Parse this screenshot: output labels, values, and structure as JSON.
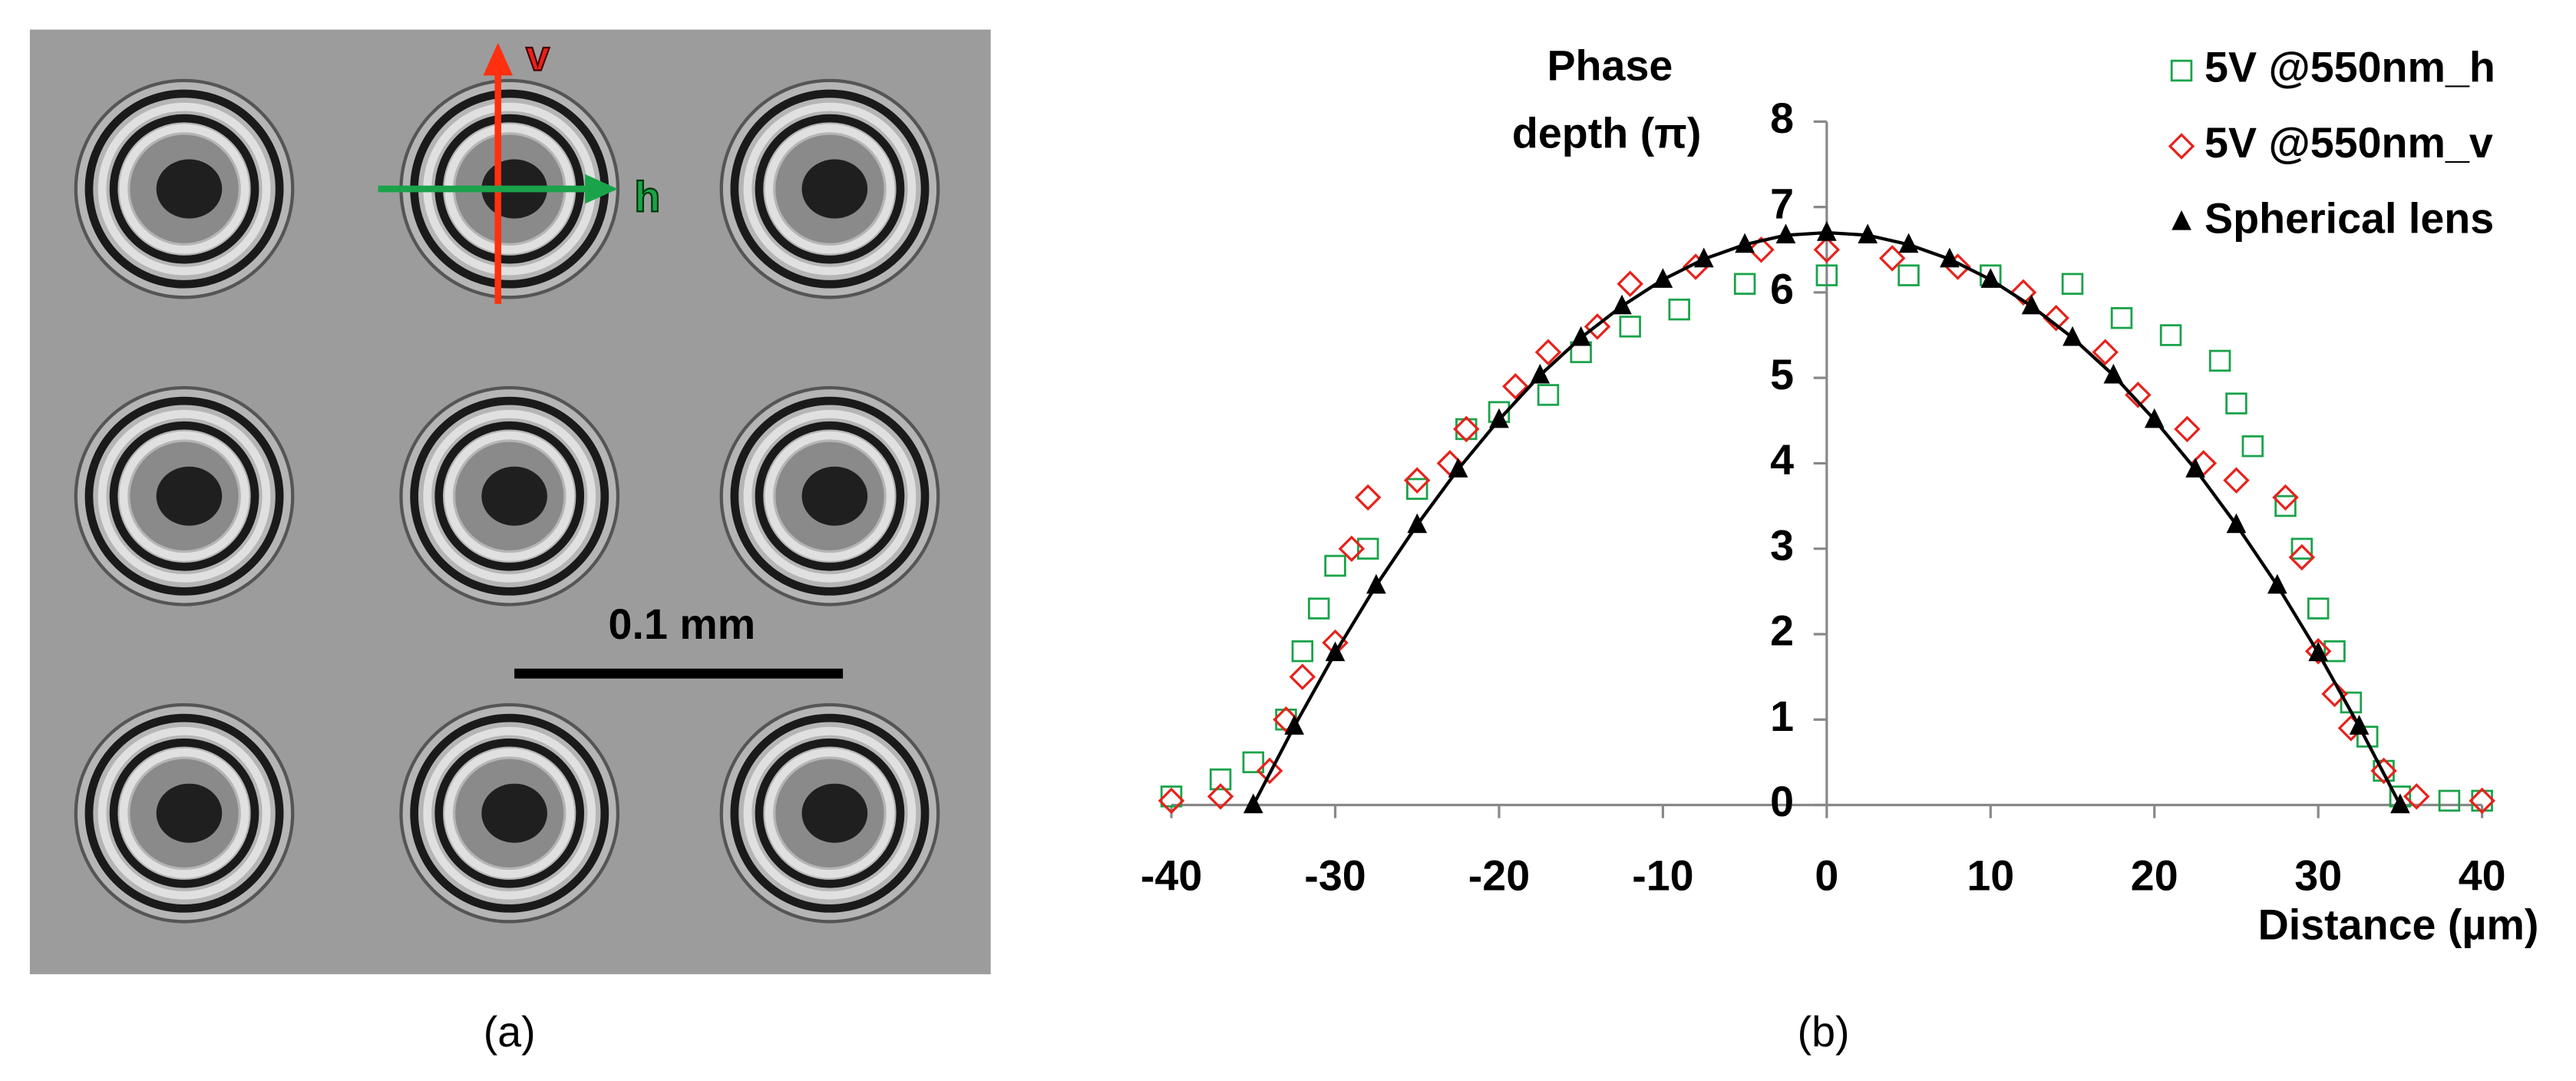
{
  "panel_a": {
    "caption": "(a)",
    "v_label": "v",
    "h_label": "h",
    "scale_label": "0.1 mm"
  },
  "chart_data": {
    "type": "scatter",
    "caption": "(b)",
    "ylabel": [
      "Phase",
      "depth (π)"
    ],
    "xlabel": "Distance (µm)",
    "xlim": [
      -40,
      40
    ],
    "ylim": [
      0,
      8
    ],
    "xticks": [
      -40,
      -30,
      -20,
      -10,
      0,
      10,
      20,
      30,
      40
    ],
    "yticks": [
      0,
      1,
      2,
      3,
      4,
      5,
      6,
      7,
      8
    ],
    "grid": false,
    "legend": "top-right",
    "series": [
      {
        "name": "5V @550nm_h",
        "color": "#1aa34a",
        "marker": "square",
        "x": [
          -40,
          -37,
          -35,
          -33,
          -32,
          -31,
          -30,
          -28,
          -25,
          -22,
          -20,
          -17,
          -15,
          -12,
          -9,
          -5,
          0,
          5,
          10,
          15,
          18,
          21,
          24,
          25,
          26,
          28,
          29,
          30,
          31,
          32,
          33,
          34,
          35,
          38,
          40
        ],
        "values": [
          0.1,
          0.3,
          0.5,
          1.0,
          1.8,
          2.3,
          2.8,
          3.0,
          3.7,
          4.4,
          4.6,
          4.8,
          5.3,
          5.6,
          5.8,
          6.1,
          6.2,
          6.2,
          6.2,
          6.1,
          5.7,
          5.5,
          5.2,
          4.7,
          4.2,
          3.5,
          3.0,
          2.3,
          1.8,
          1.2,
          0.8,
          0.4,
          0.1,
          0.05,
          0.05
        ]
      },
      {
        "name": "5V @550nm_v",
        "color": "#e8211b",
        "marker": "diamond",
        "x": [
          -40,
          -37,
          -34,
          -33,
          -32,
          -30,
          -29,
          -28,
          -25,
          -23,
          -22,
          -19,
          -17,
          -14,
          -12,
          -8,
          -4,
          0,
          4,
          8,
          12,
          14,
          17,
          19,
          22,
          23,
          25,
          28,
          29,
          30,
          31,
          32,
          34,
          36,
          40
        ],
        "values": [
          0.05,
          0.1,
          0.4,
          1.0,
          1.5,
          1.9,
          3.0,
          3.6,
          3.8,
          4.0,
          4.4,
          4.9,
          5.3,
          5.6,
          6.1,
          6.3,
          6.5,
          6.5,
          6.4,
          6.3,
          6.0,
          5.7,
          5.3,
          4.8,
          4.4,
          4.0,
          3.8,
          3.6,
          2.9,
          1.8,
          1.3,
          0.9,
          0.4,
          0.1,
          0.05
        ]
      },
      {
        "name": "Spherical lens",
        "color": "#000000",
        "marker": "triangle",
        "x": [
          -35,
          -32.5,
          -30,
          -27.5,
          -25,
          -22.5,
          -20,
          -17.5,
          -15,
          -12.5,
          -10,
          -7.5,
          -5,
          -2.5,
          0,
          2.5,
          5,
          7.5,
          10,
          12.5,
          15,
          17.5,
          20,
          22.5,
          25,
          27.5,
          30,
          32.5,
          35
        ],
        "values": [
          0,
          0.92,
          1.78,
          2.57,
          3.28,
          3.93,
          4.51,
          5.03,
          5.47,
          5.84,
          6.15,
          6.39,
          6.56,
          6.67,
          6.7,
          6.67,
          6.56,
          6.39,
          6.15,
          5.84,
          5.47,
          5.03,
          4.51,
          3.93,
          3.28,
          2.57,
          1.78,
          0.92,
          0
        ]
      }
    ]
  }
}
